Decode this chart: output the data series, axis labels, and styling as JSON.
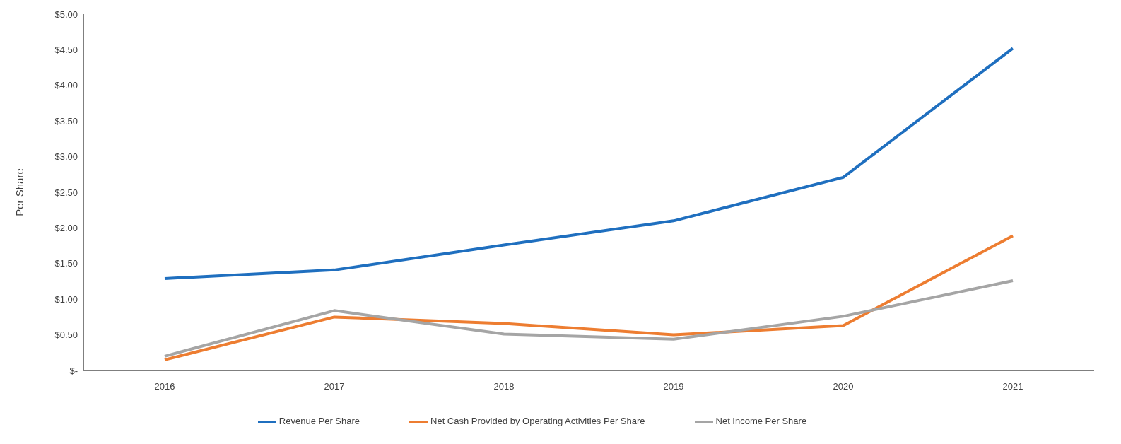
{
  "chart_data": {
    "type": "line",
    "ylabel": "Per Share",
    "categories": [
      "2016",
      "2017",
      "2018",
      "2019",
      "2020",
      "2021"
    ],
    "series": [
      {
        "name": "Revenue Per Share",
        "color": "#1f6fbf",
        "values": [
          1.29,
          1.41,
          1.76,
          2.1,
          2.71,
          4.52
        ]
      },
      {
        "name": "Net Cash Provided by Operating Activities Per Share",
        "color": "#ed7d31",
        "values": [
          0.15,
          0.75,
          0.66,
          0.5,
          0.63,
          1.89
        ]
      },
      {
        "name": "Net Income Per Share",
        "color": "#a5a5a5",
        "values": [
          0.2,
          0.84,
          0.51,
          0.44,
          0.76,
          1.26
        ]
      }
    ],
    "ylim": [
      0,
      5
    ],
    "yticks": [
      {
        "value": 0,
        "label": "$-"
      },
      {
        "value": 0.5,
        "label": "$0.50"
      },
      {
        "value": 1,
        "label": "$1.00"
      },
      {
        "value": 1.5,
        "label": "$1.50"
      },
      {
        "value": 2,
        "label": "$2.00"
      },
      {
        "value": 2.5,
        "label": "$2.50"
      },
      {
        "value": 3,
        "label": "$3.00"
      },
      {
        "value": 3.5,
        "label": "$3.50"
      },
      {
        "value": 4,
        "label": "$4.00"
      },
      {
        "value": 4.5,
        "label": "$4.50"
      },
      {
        "value": 5,
        "label": "$5.00"
      }
    ],
    "grid": false,
    "legend": "bottom",
    "marker": "none",
    "line_style": "solid"
  }
}
